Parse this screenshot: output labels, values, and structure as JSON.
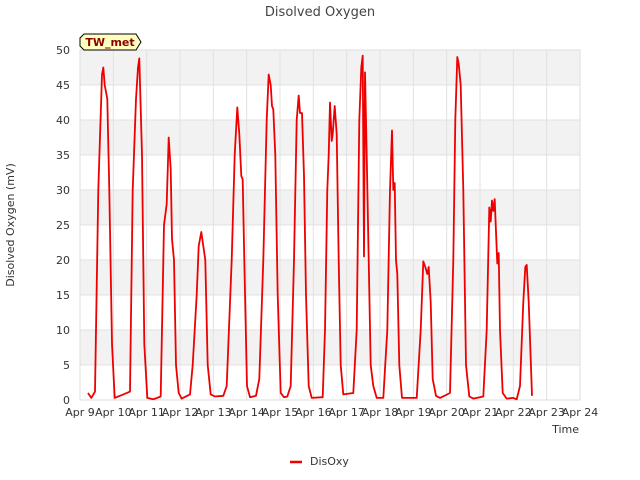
{
  "chart_data": {
    "type": "line",
    "title": "Disolved Oxygen",
    "xlabel": "Time",
    "ylabel": "Disolved Oxygen (mV)",
    "ylim": [
      0,
      50
    ],
    "yticks": [
      0,
      5,
      10,
      15,
      20,
      25,
      30,
      35,
      40,
      45,
      50
    ],
    "xlim": [
      0,
      15
    ],
    "xticks": [
      {
        "value": 0,
        "label": "Apr 9"
      },
      {
        "value": 1,
        "label": "Apr 10"
      },
      {
        "value": 2,
        "label": "Apr 11"
      },
      {
        "value": 3,
        "label": "Apr 12"
      },
      {
        "value": 4,
        "label": "Apr 13"
      },
      {
        "value": 5,
        "label": "Apr 14"
      },
      {
        "value": 6,
        "label": "Apr 15"
      },
      {
        "value": 7,
        "label": "Apr 16"
      },
      {
        "value": 8,
        "label": "Apr 17"
      },
      {
        "value": 9,
        "label": "Apr 18"
      },
      {
        "value": 10,
        "label": "Apr 19"
      },
      {
        "value": 11,
        "label": "Apr 20"
      },
      {
        "value": 12,
        "label": "Apr 21"
      },
      {
        "value": 13,
        "label": "Apr 22"
      },
      {
        "value": 14,
        "label": "Apr 23"
      },
      {
        "value": 15,
        "label": "Apr 24"
      }
    ],
    "grid": true,
    "legend_position": "bottom-center",
    "station_label": "TW_met",
    "series": [
      {
        "name": "DisOxy",
        "color": "#ee0000",
        "points": [
          [
            0.24,
            1.0
          ],
          [
            0.34,
            0.3
          ],
          [
            0.45,
            1.2
          ],
          [
            0.55,
            30.0
          ],
          [
            0.66,
            46.5
          ],
          [
            0.7,
            47.5
          ],
          [
            0.74,
            45.0
          ],
          [
            0.78,
            44.0
          ],
          [
            0.82,
            43.0
          ],
          [
            0.88,
            30.0
          ],
          [
            0.96,
            8.0
          ],
          [
            1.04,
            0.3
          ],
          [
            1.3,
            0.8
          ],
          [
            1.5,
            1.2
          ],
          [
            1.58,
            30.0
          ],
          [
            1.68,
            43.0
          ],
          [
            1.74,
            47.5
          ],
          [
            1.78,
            48.8
          ],
          [
            1.86,
            35.0
          ],
          [
            1.93,
            8.0
          ],
          [
            2.02,
            0.3
          ],
          [
            2.2,
            0.1
          ],
          [
            2.42,
            0.5
          ],
          [
            2.52,
            25.0
          ],
          [
            2.6,
            28.0
          ],
          [
            2.66,
            37.5
          ],
          [
            2.72,
            33.0
          ],
          [
            2.76,
            23.0
          ],
          [
            2.82,
            20.0
          ],
          [
            2.88,
            5.0
          ],
          [
            2.96,
            1.0
          ],
          [
            3.05,
            0.2
          ],
          [
            3.3,
            0.8
          ],
          [
            3.38,
            5.0
          ],
          [
            3.5,
            15.0
          ],
          [
            3.56,
            22.0
          ],
          [
            3.64,
            24.0
          ],
          [
            3.7,
            22.0
          ],
          [
            3.76,
            20.0
          ],
          [
            3.83,
            5.0
          ],
          [
            3.92,
            0.8
          ],
          [
            4.05,
            0.5
          ],
          [
            4.3,
            0.6
          ],
          [
            4.4,
            2.0
          ],
          [
            4.55,
            20.0
          ],
          [
            4.64,
            35.0
          ],
          [
            4.72,
            41.8
          ],
          [
            4.78,
            38.0
          ],
          [
            4.84,
            32.0
          ],
          [
            4.88,
            31.5
          ],
          [
            4.93,
            20.0
          ],
          [
            5.01,
            2.0
          ],
          [
            5.1,
            0.4
          ],
          [
            5.28,
            0.6
          ],
          [
            5.38,
            3.0
          ],
          [
            5.5,
            20.0
          ],
          [
            5.6,
            40.0
          ],
          [
            5.66,
            46.5
          ],
          [
            5.72,
            45.0
          ],
          [
            5.76,
            42.0
          ],
          [
            5.8,
            41.5
          ],
          [
            5.86,
            35.0
          ],
          [
            5.93,
            15.0
          ],
          [
            6.02,
            1.0
          ],
          [
            6.12,
            0.4
          ],
          [
            6.22,
            0.5
          ],
          [
            6.32,
            2.0
          ],
          [
            6.42,
            20.0
          ],
          [
            6.5,
            40.0
          ],
          [
            6.56,
            43.5
          ],
          [
            6.6,
            41.0
          ],
          [
            6.66,
            41.0
          ],
          [
            6.72,
            32.0
          ],
          [
            6.78,
            15.0
          ],
          [
            6.86,
            2.0
          ],
          [
            6.95,
            0.3
          ],
          [
            7.28,
            0.4
          ],
          [
            7.35,
            10.0
          ],
          [
            7.42,
            30.0
          ],
          [
            7.46,
            35.0
          ],
          [
            7.5,
            42.5
          ],
          [
            7.55,
            37.0
          ],
          [
            7.58,
            38.0
          ],
          [
            7.64,
            42.0
          ],
          [
            7.7,
            38.0
          ],
          [
            7.76,
            20.0
          ],
          [
            7.82,
            5.0
          ],
          [
            7.9,
            0.8
          ],
          [
            8.2,
            1.0
          ],
          [
            8.3,
            10.0
          ],
          [
            8.38,
            40.0
          ],
          [
            8.44,
            47.5
          ],
          [
            8.48,
            49.2
          ],
          [
            8.52,
            20.5
          ],
          [
            8.55,
            46.8
          ],
          [
            8.6,
            35.0
          ],
          [
            8.66,
            20.0
          ],
          [
            8.72,
            5.0
          ],
          [
            8.8,
            2.0
          ],
          [
            8.9,
            0.3
          ],
          [
            9.1,
            0.3
          ],
          [
            9.22,
            10.0
          ],
          [
            9.3,
            30.0
          ],
          [
            9.36,
            38.5
          ],
          [
            9.4,
            30.0
          ],
          [
            9.44,
            31.0
          ],
          [
            9.48,
            20.0
          ],
          [
            9.52,
            18.0
          ],
          [
            9.58,
            5.0
          ],
          [
            9.66,
            0.3
          ],
          [
            10.1,
            0.3
          ],
          [
            10.22,
            10.0
          ],
          [
            10.3,
            19.8
          ],
          [
            10.36,
            19.0
          ],
          [
            10.42,
            18.0
          ],
          [
            10.46,
            19.0
          ],
          [
            10.52,
            14.0
          ],
          [
            10.58,
            3.0
          ],
          [
            10.68,
            0.6
          ],
          [
            10.8,
            0.3
          ],
          [
            11.1,
            1.0
          ],
          [
            11.2,
            20.0
          ],
          [
            11.26,
            40.0
          ],
          [
            11.32,
            49.0
          ],
          [
            11.36,
            48.0
          ],
          [
            11.42,
            45.0
          ],
          [
            11.5,
            30.0
          ],
          [
            11.58,
            5.0
          ],
          [
            11.68,
            0.5
          ],
          [
            11.8,
            0.2
          ],
          [
            12.1,
            0.5
          ],
          [
            12.2,
            10.0
          ],
          [
            12.28,
            27.5
          ],
          [
            12.32,
            25.5
          ],
          [
            12.36,
            28.5
          ],
          [
            12.4,
            27.0
          ],
          [
            12.44,
            28.7
          ],
          [
            12.48,
            24.0
          ],
          [
            12.52,
            19.5
          ],
          [
            12.56,
            21.0
          ],
          [
            12.6,
            10.0
          ],
          [
            12.68,
            1.0
          ],
          [
            12.8,
            0.2
          ],
          [
            13.0,
            0.3
          ],
          [
            13.1,
            0.1
          ],
          [
            13.2,
            2.0
          ],
          [
            13.3,
            14.0
          ],
          [
            13.36,
            19.0
          ],
          [
            13.4,
            19.3
          ],
          [
            13.46,
            14.0
          ],
          [
            13.52,
            6.0
          ],
          [
            13.56,
            0.6
          ]
        ]
      }
    ]
  }
}
